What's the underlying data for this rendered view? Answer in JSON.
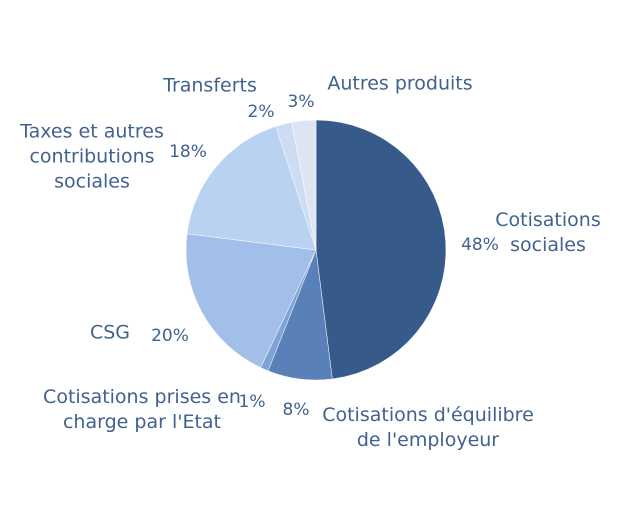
{
  "chart_data": {
    "type": "pie",
    "categories": [
      "Cotisations sociales",
      "Cotisations d'équilibre de l'employeur",
      "Cotisations prises en charge par l'Etat",
      "CSG",
      "Taxes et autres contributions sociales",
      "Transferts",
      "Autres produits"
    ],
    "values": [
      48,
      8,
      1,
      20,
      18,
      2,
      3
    ],
    "value_labels": [
      "48%",
      "8%",
      "1%",
      "20%",
      "18%",
      "2%",
      "3%"
    ],
    "colors": [
      "#365b8a",
      "#5a80b9",
      "#7fa3d6",
      "#a2bfe9",
      "#b9d2f1",
      "#cddcf2",
      "#dde5f3"
    ]
  }
}
